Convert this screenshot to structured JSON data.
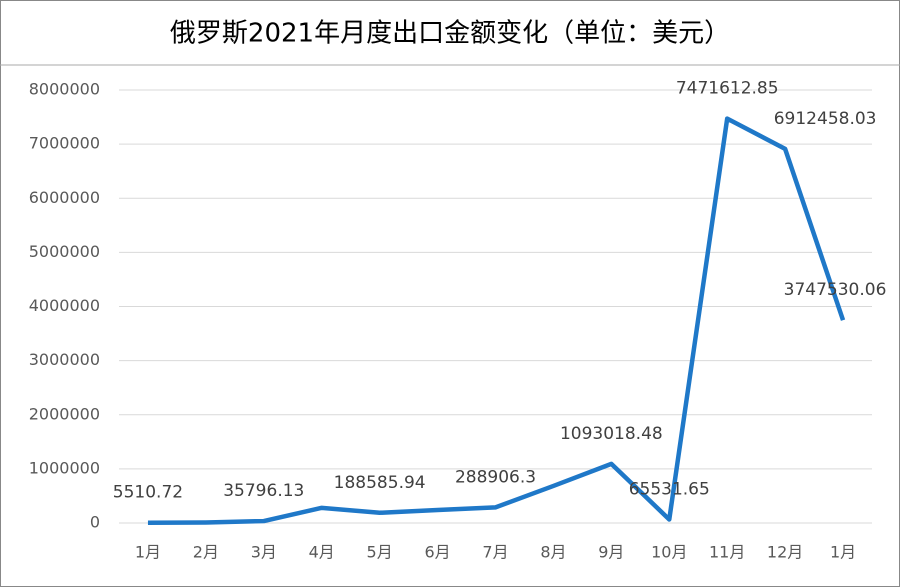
{
  "chart_data": {
    "type": "line",
    "title": "俄罗斯2021年月度出口金额变化（单位：美元）",
    "categories": [
      "1月",
      "2月",
      "3月",
      "4月",
      "5月",
      "6月",
      "7月",
      "8月",
      "9月",
      "10月",
      "11月",
      "12月",
      "1月"
    ],
    "values": [
      5510.72,
      10000,
      35796.13,
      280000,
      188585.94,
      240000,
      288906.3,
      685000,
      1093018.48,
      65531.65,
      7471612.85,
      6912458.03,
      3747530.06
    ],
    "value_labels": [
      "5510.72",
      null,
      "35796.13",
      null,
      "188585.94",
      null,
      "288906.3",
      null,
      "1093018.48",
      "65531.65",
      "7471612.85",
      "6912458.03",
      "3747530.06"
    ],
    "color": "#1f78c8",
    "ylim": [
      0,
      8000000
    ],
    "yticks": [
      0,
      1000000,
      2000000,
      3000000,
      4000000,
      5000000,
      6000000,
      7000000,
      8000000
    ],
    "grid": true
  }
}
